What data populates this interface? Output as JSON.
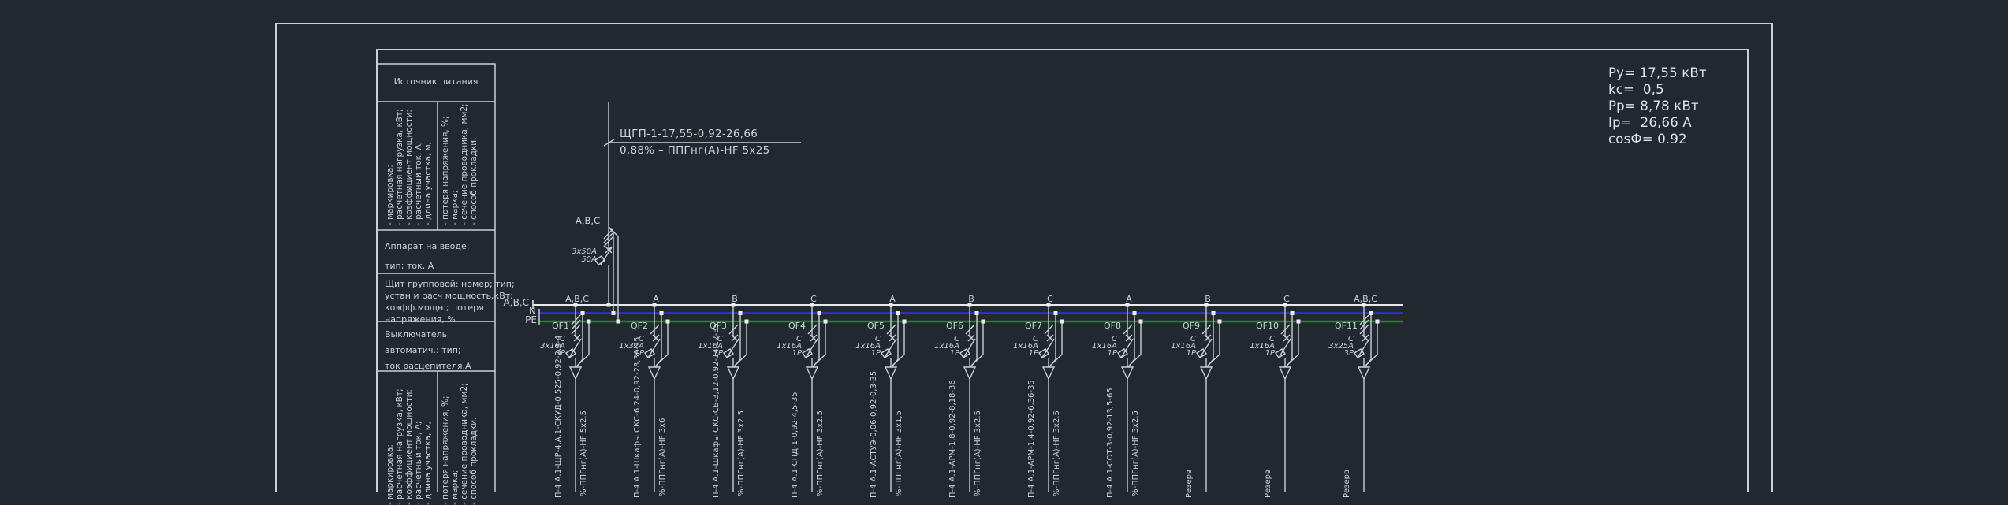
{
  "colors": {
    "background": "#212830",
    "line": "#c9cfd6",
    "neutral_bar": "#2d31dc",
    "pe_bar": "#1f8b1f",
    "text": "#ccd2d8"
  },
  "summary": {
    "lines": [
      "Ру= 17,55 кВт",
      "kc=  0,5",
      "Рр= 8,78 кВт",
      "Iр=  26,66 А",
      "cosФ= 0.92"
    ]
  },
  "info_table": {
    "header": "Источник питания",
    "feeder_params_col1": "- маркировка;\n- расчетная нагрузка, кВт;\n- коэффициент мощности;\n- расчетный ток, А;\n- длина участка, м,",
    "feeder_params_col2": "- потеря напряжения, %;\n- марка;\n- сечение проводника, мм2;\n- способ прокладки.",
    "row_input_device": "Аппарат на вводе:\nтип; ток, А",
    "row_panel": "Щит групповой: номер; тип;\nустан и расч мощность,кВт;\nкоэфф.мощн.; потеря\nнапряжения, %",
    "row_breaker": "Выключатель\nавтоматич.: тип;\nток расцепителя,А",
    "group_params_col1": "- маркировка;\n- расчетная нагрузка, кВт;\n- коэффициент мощности;\n- расчетный ток, А;\n- длина участка, м,",
    "group_params_col2": "- потеря напряжения, %;\n- марка;\n- сечение проводника, мм2;\n- способ прокладки."
  },
  "incoming": {
    "cable_label_top": "ЩГП-1-17,55-0,92-26,66",
    "cable_label_bottom": "0,88% – ППГнг(А)-HF 5х25",
    "phases_label": "A,B,C",
    "breaker_rating_line1": "3х50А",
    "breaker_rating_line2": "50А"
  },
  "busbar": {
    "labels": [
      "A,B,C",
      "N",
      "PE"
    ]
  },
  "groups": [
    {
      "name": "QF1",
      "phase": "A,B,C",
      "poles": 3,
      "curve": "С",
      "rating": "3х16А",
      "poles_label": "3Р",
      "circuit": "П-4 А.1-ЩР-4.А.1-СКУД-0,525-0,92-2,3-4",
      "cable": "%-ППГнг(А)-HF 5х2.5"
    },
    {
      "name": "QF2",
      "phase": "A",
      "poles": 1,
      "curve": "С",
      "rating": "1х32А",
      "poles_label": "1Р",
      "circuit": "П-4 А.1-Шкафы СКС-6,24-0,92-28,36-35",
      "cable": "%-ППГнг(А)-HF 3х6"
    },
    {
      "name": "QF3",
      "phase": "B",
      "poles": 1,
      "curve": "С",
      "rating": "1х16А",
      "poles_label": "1Р",
      "circuit": "П-4 А.1-Шкафы СКС-СБ-3,12-0,92-14,12-35",
      "cable": "%-ППГнг(А)-HF 3х2.5"
    },
    {
      "name": "QF4",
      "phase": "C",
      "poles": 1,
      "curve": "С",
      "rating": "1х16А",
      "poles_label": "1Р",
      "circuit": "П-4 А.1-СПД-1-0,92-4,5-35",
      "cable": "%-ППГнг(А)-HF 3х2.5"
    },
    {
      "name": "QF5",
      "phase": "A",
      "poles": 1,
      "curve": "С",
      "rating": "1х16А",
      "poles_label": "1Р",
      "circuit": "П-4 А.1-АСТУЭ-0,06-0,92-0,3-35",
      "cable": "%-ППГнг(А)-HF 3х1,5"
    },
    {
      "name": "QF6",
      "phase": "B",
      "poles": 1,
      "curve": "С",
      "rating": "1х16А",
      "poles_label": "1Р",
      "circuit": "П-4 А.1-АРМ-1,8-0,92-8,18-36",
      "cable": "%-ППГнг(А)-HF 3х2.5"
    },
    {
      "name": "QF7",
      "phase": "C",
      "poles": 1,
      "curve": "С",
      "rating": "1х16А",
      "poles_label": "1Р",
      "circuit": "П-4 А.1-АРМ-1,4-0,92-6,36-35",
      "cable": "%-ППГнг(А)-HF 3х2.5"
    },
    {
      "name": "QF8",
      "phase": "A",
      "poles": 1,
      "curve": "С",
      "rating": "1х16А",
      "poles_label": "1Р",
      "circuit": "П-4 А.1-СОТ-3-0,92-13,5-65",
      "cable": "%-ППГнг(А)-HF 3х2.5"
    },
    {
      "name": "QF9",
      "phase": "B",
      "poles": 1,
      "curve": "С",
      "rating": "1х16А",
      "poles_label": "1Р",
      "circuit": "Резерв",
      "cable": ""
    },
    {
      "name": "QF10",
      "phase": "C",
      "poles": 1,
      "curve": "С",
      "rating": "1х16А",
      "poles_label": "1Р",
      "circuit": "Резерв",
      "cable": ""
    },
    {
      "name": "QF11",
      "phase": "A,B,C",
      "poles": 3,
      "curve": "С",
      "rating": "3х25А",
      "poles_label": "3Р",
      "circuit": "Резерв",
      "cable": ""
    }
  ]
}
